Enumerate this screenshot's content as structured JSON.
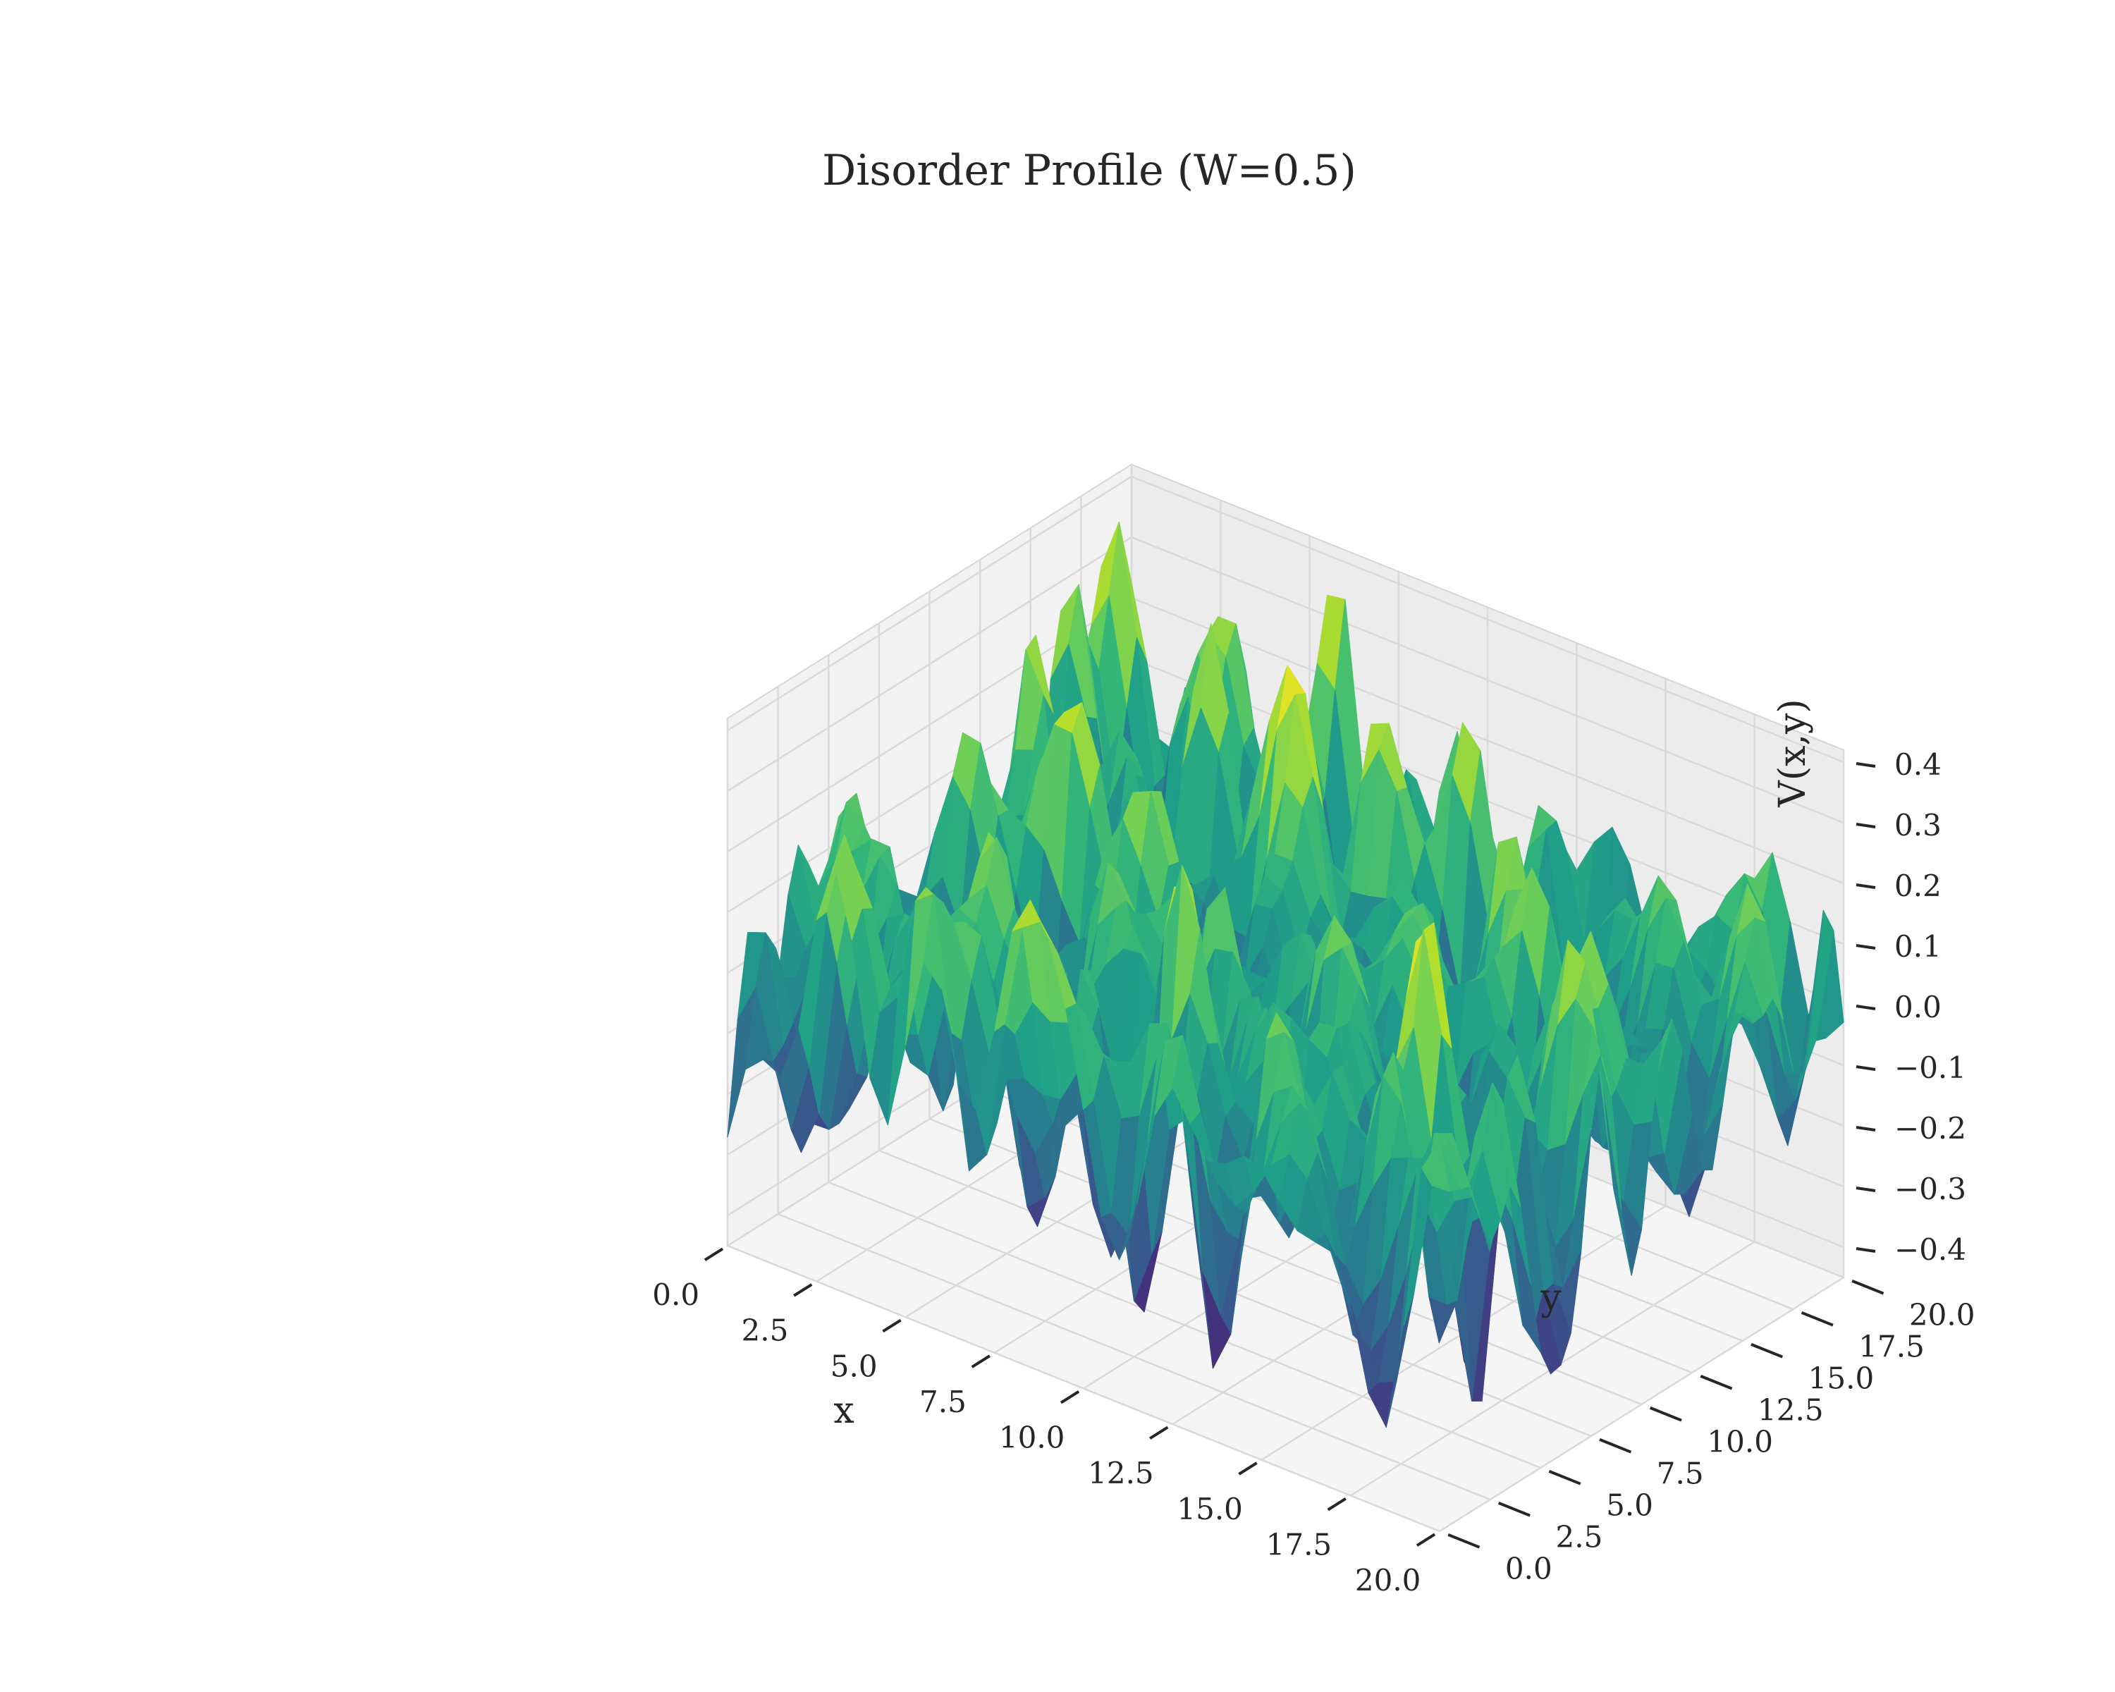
{
  "chart_data": {
    "type": "surface3d",
    "title": "Disorder Profile (W=0.5)",
    "xlabel": "x",
    "ylabel": "y",
    "zlabel": "V(x,y)",
    "xlim": [
      0,
      20
    ],
    "ylim": [
      0,
      20
    ],
    "zlim": [
      -0.45,
      0.42
    ],
    "colormap": "viridis",
    "grid": true,
    "x_ticks": [
      "0.0",
      "2.5",
      "5.0",
      "7.5",
      "10.0",
      "12.5",
      "15.0",
      "17.5",
      "20.0"
    ],
    "y_ticks": [
      "0.0",
      "2.5",
      "5.0",
      "7.5",
      "10.0",
      "12.5",
      "15.0",
      "17.5",
      "20.0"
    ],
    "z_ticks": [
      "−0.4",
      "−0.3",
      "−0.2",
      "−0.1",
      "0.0",
      "0.1",
      "0.2",
      "0.3",
      "0.4"
    ],
    "z_tick_values": [
      -0.4,
      -0.3,
      -0.2,
      -0.1,
      0.0,
      0.1,
      0.2,
      0.3,
      0.4
    ],
    "grid_resolution": 40,
    "z_value_range": [
      -0.43,
      0.38
    ]
  }
}
